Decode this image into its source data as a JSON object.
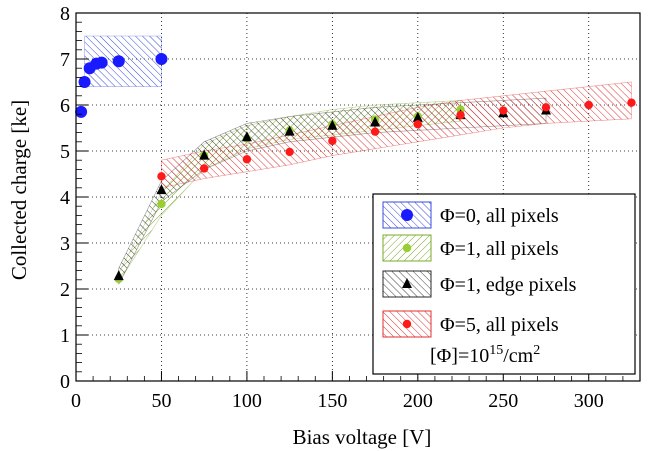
{
  "chart_data": {
    "type": "scatter",
    "title": "",
    "xlabel": "Bias voltage [V]",
    "ylabel": "Collected charge [ke]",
    "xlim": [
      0,
      330
    ],
    "ylim": [
      0,
      8
    ],
    "x_ticks": [
      "0",
      "50",
      "100",
      "150",
      "200",
      "250",
      "300"
    ],
    "y_ticks": [
      "0",
      "1",
      "2",
      "3",
      "4",
      "5",
      "6",
      "7",
      "8"
    ],
    "grid": true,
    "legend_position": "bottom-right",
    "series": [
      {
        "name": "Φ=0, all pixels",
        "label_phi": "Φ=0, all pixels",
        "marker": "circle-large",
        "color": "#1a1aff",
        "band_color": "#3a4bdc",
        "x": [
          3,
          5,
          8,
          12,
          15,
          25,
          50
        ],
        "y": [
          5.85,
          6.5,
          6.8,
          6.9,
          6.92,
          6.95,
          7.0
        ],
        "band_low": [
          6.4,
          6.4,
          6.4,
          6.4,
          6.4,
          6.4,
          6.4
        ],
        "band_high": [
          7.5,
          7.5,
          7.5,
          7.5,
          7.5,
          7.5,
          7.5
        ],
        "band_x": [
          5,
          50
        ]
      },
      {
        "name": "Φ=1, all pixels",
        "marker": "circle",
        "color": "#9acd32",
        "band_color": "#7aa82a",
        "x": [
          25,
          50,
          75,
          100,
          125,
          150,
          175,
          200,
          225
        ],
        "y": [
          2.22,
          3.85,
          4.9,
          5.27,
          5.45,
          5.58,
          5.68,
          5.75,
          5.9
        ],
        "band_low": [
          2.15,
          3.6,
          4.6,
          5.05,
          5.25,
          5.35,
          5.45,
          5.55,
          5.65
        ],
        "band_high": [
          2.35,
          4.1,
          5.15,
          5.55,
          5.75,
          5.9,
          6.0,
          6.05,
          6.1
        ]
      },
      {
        "name": "Φ=1, edge pixels",
        "marker": "triangle",
        "color": "#000000",
        "band_color": "#2a2a2a",
        "x": [
          25,
          50,
          75,
          100,
          125,
          150,
          175,
          200,
          225,
          250,
          275
        ],
        "y": [
          2.28,
          4.15,
          4.9,
          5.3,
          5.42,
          5.55,
          5.62,
          5.72,
          5.78,
          5.82,
          5.88
        ],
        "band_low": [
          2.1,
          3.9,
          4.6,
          5.0,
          5.2,
          5.3,
          5.4,
          5.45,
          5.5,
          5.55,
          5.6
        ],
        "band_high": [
          2.45,
          4.35,
          5.2,
          5.6,
          5.75,
          5.85,
          5.95,
          6.0,
          6.05,
          6.1,
          6.15
        ]
      },
      {
        "name": "Φ=5, all pixels",
        "marker": "circle",
        "color": "#ff1a1a",
        "band_color": "#e03030",
        "x": [
          50,
          75,
          100,
          125,
          150,
          175,
          200,
          225,
          250,
          275,
          300,
          325
        ],
        "y": [
          4.45,
          4.62,
          4.82,
          4.98,
          5.22,
          5.42,
          5.58,
          5.78,
          5.88,
          5.95,
          6.0,
          6.05
        ],
        "band_low": [
          4.2,
          4.4,
          4.55,
          4.7,
          4.9,
          5.05,
          5.2,
          5.35,
          5.5,
          5.6,
          5.65,
          5.7
        ],
        "band_high": [
          4.8,
          5.0,
          5.15,
          5.35,
          5.55,
          5.75,
          5.95,
          6.1,
          6.2,
          6.3,
          6.4,
          6.5
        ]
      }
    ],
    "legend_note_prefix": "[Φ]=10",
    "legend_note_exp": "15",
    "legend_note_suffix": "/cm",
    "legend_note_sup2": "2"
  }
}
